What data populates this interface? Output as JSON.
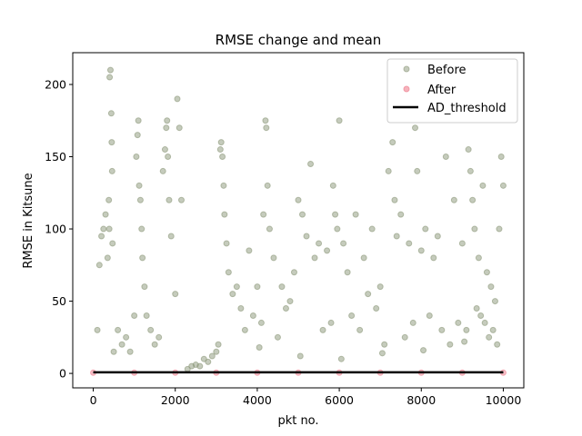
{
  "chart_data": {
    "type": "scatter",
    "title": "RMSE change and mean",
    "xlabel": "pkt no.",
    "ylabel": "RMSE in Kitsune",
    "xlim": [
      -500,
      10500
    ],
    "ylim": [
      -10,
      222
    ],
    "xticks": [
      0,
      2000,
      4000,
      6000,
      8000,
      10000
    ],
    "yticks": [
      0,
      50,
      100,
      150,
      200
    ],
    "xtick_labels": [
      "0",
      "2000",
      "4000",
      "6000",
      "8000",
      "10000"
    ],
    "ytick_labels": [
      "0",
      "50",
      "100",
      "150",
      "200"
    ],
    "grid": false,
    "legend_position": "top-right",
    "legend": {
      "before_label": "Before",
      "after_label": "After",
      "threshold_label": "AD_threshold"
    },
    "colors": {
      "before": "#8c977a",
      "after": "#f08090",
      "threshold": "#000000"
    },
    "series": [
      {
        "name": "Before",
        "kind": "scatter",
        "x": [
          400,
          420,
          440,
          450,
          460,
          380,
          390,
          470,
          350,
          300,
          250,
          200,
          150,
          100,
          1050,
          1080,
          1100,
          1120,
          1150,
          1180,
          1200,
          1250,
          1000,
          1700,
          1750,
          1780,
          1800,
          1820,
          1850,
          1900,
          2000,
          2050,
          2100,
          2150,
          3100,
          3120,
          3150,
          3180,
          3200,
          3250,
          3300,
          3400,
          3500,
          3600,
          3800,
          4000,
          4150,
          4200,
          4220,
          4250,
          4300,
          4400,
          4600,
          4800,
          4900,
          5000,
          5100,
          5200,
          5300,
          5400,
          5500,
          5700,
          5850,
          5900,
          5950,
          6000,
          6100,
          6200,
          6400,
          6600,
          6700,
          6800,
          7000,
          7200,
          7300,
          7350,
          7400,
          7500,
          7700,
          7850,
          7900,
          8000,
          8100,
          8300,
          8400,
          8600,
          8800,
          9000,
          9150,
          9200,
          9250,
          9300,
          9400,
          9500,
          9600,
          9700,
          9800,
          9900,
          9950,
          10000,
          600,
          700,
          800,
          900,
          1300,
          1400,
          1500,
          2600,
          2800,
          2900,
          3000,
          3700,
          3900,
          4100,
          4500,
          4700,
          5600,
          5800,
          6300,
          6500,
          6900,
          7100,
          7600,
          7800,
          8200,
          8500,
          8700,
          8900,
          9100,
          9350,
          9450,
          9550,
          9650,
          9750,
          9850,
          2300,
          2400,
          2500,
          2700,
          500,
          1600,
          3050,
          4050,
          5050,
          6050,
          7050,
          8050,
          9050
        ],
        "y": [
          205,
          210,
          180,
          160,
          140,
          120,
          100,
          90,
          80,
          110,
          100,
          95,
          75,
          30,
          150,
          165,
          175,
          130,
          120,
          100,
          80,
          60,
          40,
          140,
          155,
          170,
          175,
          150,
          120,
          95,
          55,
          190,
          170,
          120,
          155,
          160,
          150,
          130,
          110,
          90,
          70,
          55,
          60,
          45,
          85,
          60,
          110,
          175,
          170,
          130,
          100,
          80,
          60,
          50,
          70,
          120,
          110,
          95,
          145,
          80,
          90,
          85,
          130,
          110,
          100,
          175,
          90,
          70,
          110,
          80,
          55,
          100,
          60,
          140,
          160,
          120,
          95,
          110,
          90,
          170,
          140,
          85,
          100,
          80,
          95,
          150,
          120,
          90,
          155,
          140,
          120,
          100,
          80,
          130,
          70,
          60,
          50,
          100,
          150,
          130,
          30,
          20,
          25,
          15,
          40,
          30,
          20,
          5,
          8,
          12,
          15,
          30,
          40,
          35,
          25,
          45,
          30,
          35,
          40,
          30,
          45,
          20,
          25,
          35,
          40,
          30,
          20,
          35,
          30,
          45,
          40,
          35,
          25,
          30,
          20,
          3,
          5,
          6,
          10,
          15,
          25,
          20,
          18,
          12,
          10,
          14,
          16,
          22
        ]
      },
      {
        "name": "After",
        "kind": "scatter",
        "x": [
          0,
          1000,
          2000,
          3000,
          4000,
          5000,
          6000,
          7000,
          8000,
          9000,
          10000
        ],
        "y": [
          0.5,
          0.5,
          0.5,
          0.5,
          0.5,
          0.5,
          0.5,
          0.5,
          0.5,
          0.5,
          0.5
        ]
      },
      {
        "name": "AD_threshold",
        "kind": "line",
        "x": [
          0,
          10000
        ],
        "y": [
          0.8,
          0.8
        ]
      }
    ]
  }
}
